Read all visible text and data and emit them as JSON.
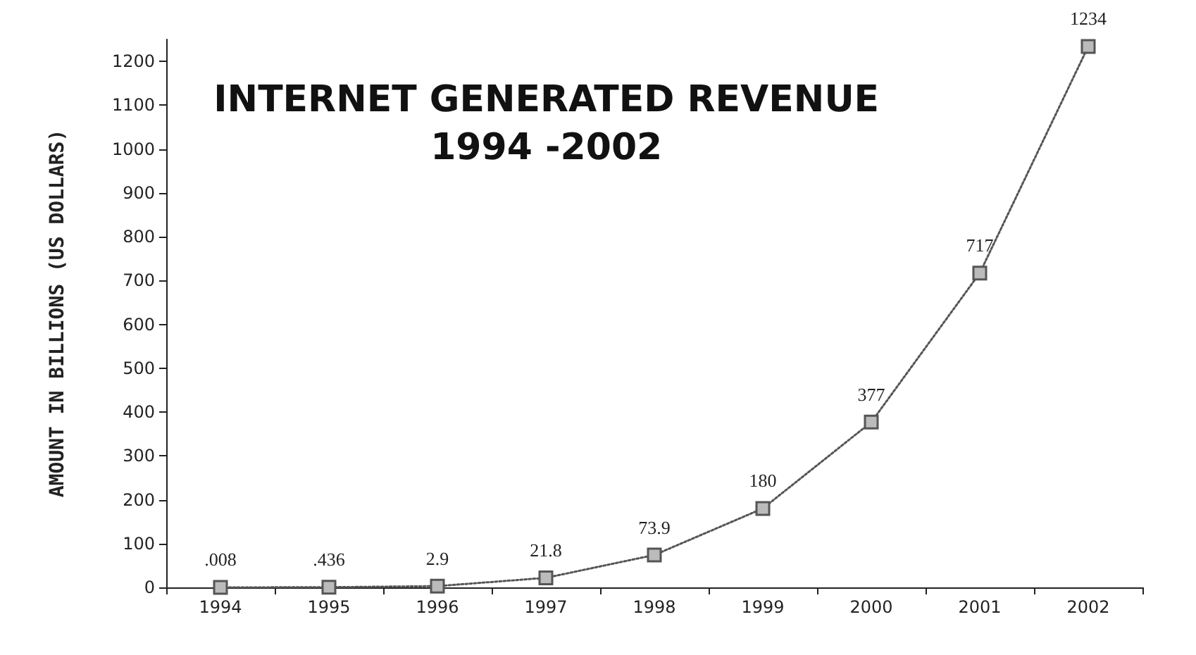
{
  "chart_data": {
    "type": "line",
    "title": "INTERNET GENERATED REVENUE",
    "subtitle": "1994 -2002",
    "ylabel": "AMOUNT IN BILLIONS (US DOLLARS)",
    "categories": [
      "1994",
      "1995",
      "1996",
      "1997",
      "1998",
      "1999",
      "2000",
      "2001",
      "2002"
    ],
    "values": [
      0.008,
      0.436,
      2.9,
      21.8,
      73.9,
      180,
      377,
      717,
      1234
    ],
    "value_labels": [
      ".008",
      ".436",
      "2.9",
      "21.8",
      "73.9",
      "180",
      "377",
      "717",
      "1234"
    ],
    "color": "#555555",
    "marker": "square",
    "line_style": "dotted",
    "grid": false,
    "ylim": [
      0,
      1250
    ],
    "yticks": [
      0,
      100,
      200,
      300,
      400,
      500,
      600,
      700,
      800,
      900,
      1000,
      1100,
      1200
    ]
  }
}
